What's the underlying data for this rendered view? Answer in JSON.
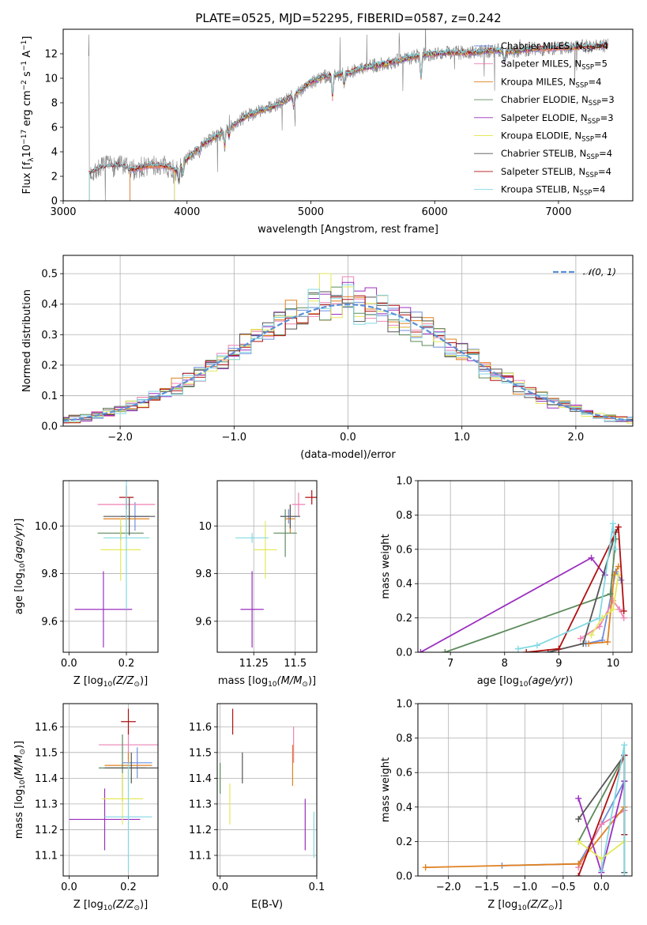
{
  "figure_title": "PLATE=0525, MJD=52295, FIBERID=0587, z=0.242",
  "colors": {
    "Chabrier MILES": "#6f8fdd",
    "Salpeter MILES": "#ee82b4",
    "Kroupa MILES": "#e0801e",
    "Chabrier ELODIE": "#5c8a5c",
    "Salpeter ELODIE": "#9b2fbf",
    "Kroupa ELODIE": "#e5e85a",
    "Chabrier STELIB": "#555555",
    "Salpeter STELIB": "#b01010",
    "Kroupa STELIB": "#82d9e3",
    "gauss": "#5b8fd6",
    "data": "#808080"
  },
  "legend_entries": [
    {
      "model": "Chabrier MILES",
      "label": "Chabrier MILES, N",
      "sub": "SSP",
      "suffix": "=4"
    },
    {
      "model": "Salpeter MILES",
      "label": "Salpeter MILES, N",
      "sub": "SSP",
      "suffix": "=5"
    },
    {
      "model": "Kroupa MILES",
      "label": "Kroupa MILES, N",
      "sub": "SSP",
      "suffix": "=4"
    },
    {
      "model": "Chabrier ELODIE",
      "label": "Chabrier ELODIE, N",
      "sub": "SSP",
      "suffix": "=3"
    },
    {
      "model": "Salpeter ELODIE",
      "label": "Salpeter ELODIE, N",
      "sub": "SSP",
      "suffix": "=3"
    },
    {
      "model": "Kroupa ELODIE",
      "label": "Kroupa ELODIE, N",
      "sub": "SSP",
      "suffix": "=4"
    },
    {
      "model": "Chabrier STELIB",
      "label": "Chabrier STELIB, N",
      "sub": "SSP",
      "suffix": "=4"
    },
    {
      "model": "Salpeter STELIB",
      "label": "Salpeter STELIB, N",
      "sub": "SSP",
      "suffix": "=4"
    },
    {
      "model": "Kroupa STELIB",
      "label": "Kroupa STELIB, N",
      "sub": "SSP",
      "suffix": "=4"
    }
  ],
  "chart_data": [
    {
      "id": "spectrum",
      "type": "line",
      "xlabel": "wavelength [Angstrom, rest frame]",
      "ylabel": "Flux [f",
      "xlim": [
        3000,
        7600
      ],
      "ylim": [
        0,
        14
      ],
      "xticks": [
        3000,
        4000,
        5000,
        6000,
        7000
      ],
      "yticks": [
        0,
        2,
        4,
        6,
        8,
        10,
        12
      ],
      "grid": false,
      "legend": "upper right",
      "continuum": [
        [
          3210,
          2.2
        ],
        [
          3300,
          2.7
        ],
        [
          3450,
          2.9
        ],
        [
          3550,
          2.5
        ],
        [
          3700,
          2.9
        ],
        [
          3850,
          2.8
        ],
        [
          3920,
          2.4
        ],
        [
          3990,
          3.3
        ],
        [
          4100,
          4.4
        ],
        [
          4200,
          5.1
        ],
        [
          4300,
          5.6
        ],
        [
          4400,
          6.4
        ],
        [
          4500,
          7.0
        ],
        [
          4600,
          7.4
        ],
        [
          4700,
          7.7
        ],
        [
          4800,
          8.2
        ],
        [
          4900,
          8.9
        ],
        [
          5000,
          9.7
        ],
        [
          5100,
          10.1
        ],
        [
          5200,
          10.3
        ],
        [
          5300,
          10.4
        ],
        [
          5400,
          10.8
        ],
        [
          5500,
          11.0
        ],
        [
          5600,
          11.2
        ],
        [
          5700,
          11.4
        ],
        [
          5800,
          11.7
        ],
        [
          5900,
          11.9
        ],
        [
          6000,
          12.0
        ],
        [
          6100,
          12.1
        ],
        [
          6200,
          12.1
        ],
        [
          6300,
          12.1
        ],
        [
          6400,
          12.2
        ],
        [
          6500,
          12.3
        ],
        [
          6600,
          12.2
        ],
        [
          6700,
          12.3
        ],
        [
          6800,
          12.4
        ],
        [
          6900,
          12.4
        ],
        [
          7000,
          12.5
        ],
        [
          7100,
          12.5
        ],
        [
          7200,
          12.6
        ],
        [
          7300,
          12.6
        ],
        [
          7400,
          12.7
        ]
      ]
    },
    {
      "id": "residuals",
      "type": "histogram",
      "xlabel": "(data-model)/error",
      "ylabel": "Normed distribution",
      "xlim": [
        -2.5,
        2.5
      ],
      "ylim": [
        0,
        0.56
      ],
      "xticks": [
        -2,
        -1,
        0,
        1,
        2
      ],
      "yticks": [
        0.0,
        0.1,
        0.2,
        0.3,
        0.4,
        0.5
      ],
      "grid": true,
      "legend": "upper right",
      "gauss_label": "𝒩(0, 1)",
      "bin_width": 0.1
    },
    {
      "id": "age-vs-Z",
      "type": "errorbar",
      "xlabel": "Z [log",
      "ylabel": "age  [log",
      "xlim": [
        -0.02,
        0.31
      ],
      "ylim": [
        9.47,
        10.19
      ],
      "xticks": [
        0.0,
        0.2
      ],
      "yticks": [
        9.6,
        9.8,
        10.0
      ],
      "grid": true,
      "points": [
        {
          "model": "Chabrier MILES",
          "x": 0.23,
          "y": 10.04,
          "xerr": 0.05,
          "yerr": 0.06
        },
        {
          "model": "Salpeter MILES",
          "x": 0.2,
          "y": 10.09,
          "xerr": 0.1,
          "yerr": 0.06
        },
        {
          "model": "Kroupa MILES",
          "x": 0.2,
          "y": 10.03,
          "xerr": 0.08,
          "yerr": 0.08
        },
        {
          "model": "Chabrier ELODIE",
          "x": 0.18,
          "y": 9.97,
          "xerr": 0.08,
          "yerr": 0.03
        },
        {
          "model": "Salpeter ELODIE",
          "x": 0.12,
          "y": 9.65,
          "xerr": 0.1,
          "yerr": 0.16
        },
        {
          "model": "Kroupa ELODIE",
          "x": 0.18,
          "y": 9.9,
          "xerr": 0.07,
          "yerr": 0.13
        },
        {
          "model": "Chabrier STELIB",
          "x": 0.21,
          "y": 10.04,
          "xerr": 0.09,
          "yerr": 0.08
        },
        {
          "model": "Salpeter STELIB",
          "x": 0.2,
          "y": 10.12,
          "xerr": 0.025,
          "yerr": 0.05
        },
        {
          "model": "Kroupa STELIB",
          "x": 0.2,
          "y": 9.95,
          "xerr": 0.08,
          "yerr": 0.3
        }
      ]
    },
    {
      "id": "age-vs-mass",
      "type": "errorbar",
      "xlabel": "mass [log",
      "ylabel": "",
      "xlim": [
        11.03,
        11.63
      ],
      "ylim": [
        9.47,
        10.19
      ],
      "xticks": [
        11.25,
        11.5
      ],
      "yticks": [
        9.6,
        9.8,
        10.0
      ],
      "grid": true,
      "points": [
        {
          "model": "Chabrier MILES",
          "x": 11.46,
          "y": 10.04,
          "xerr": 0.05,
          "yerr": 0.03
        },
        {
          "model": "Salpeter MILES",
          "x": 11.52,
          "y": 10.09,
          "xerr": 0.04,
          "yerr": 0.05
        },
        {
          "model": "Kroupa MILES",
          "x": 11.47,
          "y": 10.03,
          "xerr": 0.03,
          "yerr": 0.06
        },
        {
          "model": "Chabrier ELODIE",
          "x": 11.44,
          "y": 9.97,
          "xerr": 0.07,
          "yerr": 0.1
        },
        {
          "model": "Salpeter ELODIE",
          "x": 11.24,
          "y": 9.65,
          "xerr": 0.07,
          "yerr": 0.16
        },
        {
          "model": "Kroupa ELODIE",
          "x": 11.32,
          "y": 9.9,
          "xerr": 0.07,
          "yerr": 0.12
        },
        {
          "model": "Chabrier STELIB",
          "x": 11.47,
          "y": 10.04,
          "xerr": 0.06,
          "yerr": 0.05
        },
        {
          "model": "Salpeter STELIB",
          "x": 11.6,
          "y": 10.12,
          "xerr": 0.04,
          "yerr": 0.03
        },
        {
          "model": "Kroupa STELIB",
          "x": 11.24,
          "y": 9.95,
          "xerr": 0.1,
          "yerr": 0.02
        }
      ]
    },
    {
      "id": "mass-weight-vs-age",
      "type": "line",
      "xlabel": "age  [log",
      "ylabel": "mass weight",
      "xlim": [
        6.4,
        10.35
      ],
      "ylim": [
        0,
        1
      ],
      "xticks": [
        7,
        8,
        9,
        10
      ],
      "yticks": [
        0.0,
        0.2,
        0.4,
        0.6,
        0.8,
        1.0
      ],
      "grid": true,
      "series": [
        {
          "model": "Chabrier MILES",
          "x": [
            9.5,
            9.8,
            10.05,
            10.15
          ],
          "y": [
            0.05,
            0.07,
            0.47,
            0.42
          ]
        },
        {
          "model": "Salpeter MILES",
          "x": [
            9.4,
            9.75,
            10.0,
            10.12,
            10.2
          ],
          "y": [
            0.08,
            0.15,
            0.3,
            0.25,
            0.2
          ]
        },
        {
          "model": "Kroupa MILES",
          "x": [
            9.55,
            9.9,
            10.02,
            10.1
          ],
          "y": [
            0.05,
            0.06,
            0.45,
            0.5
          ]
        },
        {
          "model": "Chabrier ELODIE",
          "x": [
            6.9,
            9.95,
            10.05
          ],
          "y": [
            0.0,
            0.34,
            0.66
          ]
        },
        {
          "model": "Salpeter ELODIE",
          "x": [
            6.45,
            9.6,
            9.85
          ],
          "y": [
            0.0,
            0.55,
            0.45
          ]
        },
        {
          "model": "Kroupa ELODIE",
          "x": [
            9.6,
            9.8,
            10.0,
            10.1
          ],
          "y": [
            0.1,
            0.2,
            0.25,
            0.45
          ]
        },
        {
          "model": "Chabrier STELIB",
          "x": [
            8.8,
            9.45,
            10.05
          ],
          "y": [
            0.0,
            0.05,
            0.7
          ]
        },
        {
          "model": "Salpeter STELIB",
          "x": [
            8.4,
            9.0,
            10.1,
            10.2
          ],
          "y": [
            0.0,
            0.02,
            0.73,
            0.24
          ]
        },
        {
          "model": "Kroupa STELIB",
          "x": [
            8.25,
            8.6,
            9.75,
            10.0,
            10.05
          ],
          "y": [
            0.02,
            0.04,
            0.2,
            0.75,
            0.6
          ]
        }
      ]
    },
    {
      "id": "mass-vs-Z",
      "type": "errorbar",
      "xlabel": "Z [log",
      "ylabel": "mass [log",
      "xlim": [
        -0.02,
        0.3
      ],
      "ylim": [
        11.02,
        11.69
      ],
      "xticks": [
        0.0,
        0.2
      ],
      "yticks": [
        11.1,
        11.2,
        11.3,
        11.4,
        11.5,
        11.6
      ],
      "grid": true,
      "points": [
        {
          "model": "Chabrier MILES",
          "x": 0.23,
          "y": 11.46,
          "xerr": 0.05,
          "yerr": 0.06
        },
        {
          "model": "Salpeter MILES",
          "x": 0.2,
          "y": 11.53,
          "xerr": 0.1,
          "yerr": 0.06
        },
        {
          "model": "Kroupa MILES",
          "x": 0.2,
          "y": 11.45,
          "xerr": 0.08,
          "yerr": 0.05
        },
        {
          "model": "Chabrier ELODIE",
          "x": 0.18,
          "y": 11.44,
          "xerr": 0.08,
          "yerr": 0.13
        },
        {
          "model": "Salpeter ELODIE",
          "x": 0.12,
          "y": 11.24,
          "xerr": 0.12,
          "yerr": 0.12
        },
        {
          "model": "Kroupa ELODIE",
          "x": 0.18,
          "y": 11.32,
          "xerr": 0.07,
          "yerr": 0.1
        },
        {
          "model": "Chabrier STELIB",
          "x": 0.21,
          "y": 11.44,
          "xerr": 0.09,
          "yerr": 0.06
        },
        {
          "model": "Salpeter STELIB",
          "x": 0.2,
          "y": 11.62,
          "xerr": 0.025,
          "yerr": 0.05
        },
        {
          "model": "Kroupa STELIB",
          "x": 0.2,
          "y": 11.25,
          "xerr": 0.08,
          "yerr": 0.21
        }
      ]
    },
    {
      "id": "mass-vs-ebv",
      "type": "errorbar",
      "xlabel": "E(B-V)",
      "ylabel": "",
      "xlim": [
        -0.003,
        0.1
      ],
      "ylim": [
        11.02,
        11.69
      ],
      "xticks": [
        0.0,
        0.1
      ],
      "yticks": [
        11.1,
        11.2,
        11.3,
        11.4,
        11.5,
        11.6
      ],
      "grid": true,
      "points": [
        {
          "model": "Salpeter STELIB",
          "x": 0.013,
          "y": 11.62,
          "xerr": 0,
          "yerr": 0.05
        },
        {
          "model": "Salpeter MILES",
          "x": 0.076,
          "y": 11.53,
          "xerr": 0,
          "yerr": 0.07
        },
        {
          "model": "Kroupa MILES",
          "x": 0.075,
          "y": 11.45,
          "xerr": 0,
          "yerr": 0.08
        },
        {
          "model": "Chabrier STELIB",
          "x": 0.023,
          "y": 11.44,
          "xerr": 0,
          "yerr": 0.06
        },
        {
          "model": "Chabrier ELODIE",
          "x": 0.0,
          "y": 11.4,
          "xerr": 0,
          "yerr": 0.06
        },
        {
          "model": "Kroupa ELODIE",
          "x": 0.01,
          "y": 11.3,
          "xerr": 0,
          "yerr": 0.08
        },
        {
          "model": "Salpeter ELODIE",
          "x": 0.088,
          "y": 11.22,
          "xerr": 0,
          "yerr": 0.1
        },
        {
          "model": "Kroupa STELIB",
          "x": 0.097,
          "y": 11.18,
          "xerr": 0,
          "yerr": 0.09
        }
      ]
    },
    {
      "id": "mass-weight-vs-Z",
      "type": "line",
      "xlabel": "Z [log",
      "ylabel": "mass weight",
      "xlim": [
        -2.4,
        0.4
      ],
      "ylim": [
        0,
        1
      ],
      "xticks": [
        -2.0,
        -1.5,
        -1.0,
        -0.5,
        0.0
      ],
      "yticks": [
        0.0,
        0.2,
        0.4,
        0.6,
        0.8,
        1.0
      ],
      "grid": true,
      "series": [
        {
          "model": "Chabrier MILES",
          "x": [
            -1.3,
            -0.3,
            0.0,
            0.3
          ],
          "y": [
            0.06,
            0.07,
            0.3,
            0.55
          ]
        },
        {
          "model": "Salpeter MILES",
          "x": [
            -0.3,
            0.0,
            0.3
          ],
          "y": [
            0.05,
            0.3,
            0.38
          ]
        },
        {
          "model": "Kroupa MILES",
          "x": [
            -2.3,
            -0.3,
            0.3
          ],
          "y": [
            0.05,
            0.07,
            0.4
          ]
        },
        {
          "model": "Chabrier ELODIE",
          "x": [
            -0.3,
            0.3
          ],
          "y": [
            0.2,
            0.7
          ]
        },
        {
          "model": "Salpeter ELODIE",
          "x": [
            -0.3,
            0.0,
            0.3
          ],
          "y": [
            0.45,
            0.02,
            0.55
          ]
        },
        {
          "model": "Kroupa ELODIE",
          "x": [
            -0.3,
            0.0,
            0.3
          ],
          "y": [
            0.2,
            0.1,
            0.2
          ]
        },
        {
          "model": "Chabrier STELIB",
          "x": [
            -0.3,
            0.3,
            0.3
          ],
          "y": [
            0.33,
            0.7,
            0.02
          ]
        },
        {
          "model": "Salpeter STELIB",
          "x": [
            -0.3,
            0.3,
            0.3
          ],
          "y": [
            0.0,
            0.7,
            0.24
          ]
        },
        {
          "model": "Kroupa STELIB",
          "x": [
            0.0,
            0.3,
            0.3
          ],
          "y": [
            0.03,
            0.76,
            0.0
          ]
        }
      ]
    }
  ]
}
